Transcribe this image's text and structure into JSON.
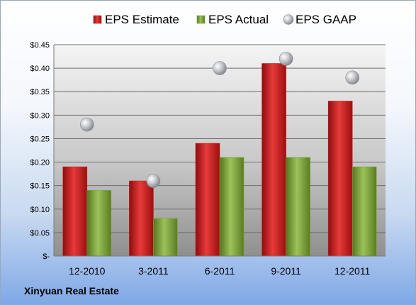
{
  "chart_data": {
    "type": "bar",
    "categories": [
      "12-2010",
      "3-2011",
      "6-2011",
      "9-2011",
      "12-2011"
    ],
    "series": [
      {
        "name": "EPS Estimate",
        "kind": "bar",
        "color": "#cc1f1f",
        "values": [
          0.19,
          0.16,
          0.24,
          0.41,
          0.33
        ]
      },
      {
        "name": "EPS Actual",
        "kind": "bar",
        "color": "#7ea63a",
        "values": [
          0.14,
          0.08,
          0.21,
          0.21,
          0.19
        ]
      },
      {
        "name": "EPS GAAP",
        "kind": "marker",
        "color": "#b5b8bd",
        "values": [
          0.28,
          0.16,
          0.4,
          0.42,
          0.38
        ]
      }
    ],
    "yticks": [
      "$-",
      "$0.05",
      "$0.10",
      "$0.15",
      "$0.20",
      "$0.25",
      "$0.30",
      "$0.35",
      "$0.40",
      "$0.45"
    ],
    "ylim": [
      0,
      0.45
    ],
    "grid": true,
    "legend_position": "top"
  },
  "company": "Xinyuan Real Estate"
}
